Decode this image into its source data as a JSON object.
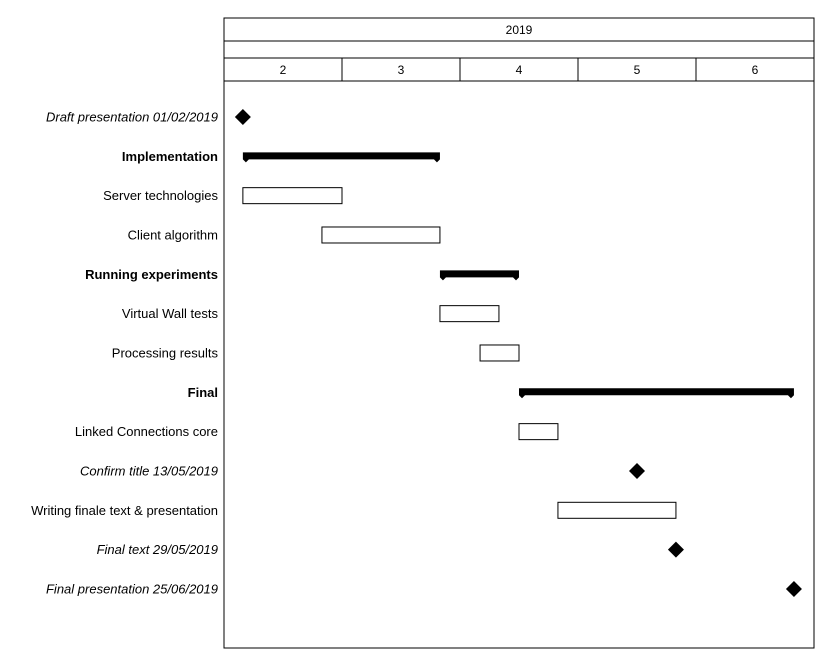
{
  "chart_data": {
    "type": "gantt",
    "year": "2019",
    "months": [
      "2",
      "3",
      "4",
      "5",
      "6"
    ],
    "month_range": [
      1.5,
      6.5
    ],
    "colors": {
      "bar_fill": "#ffffff",
      "bar_stroke": "#000000",
      "group_fill": "#000000",
      "milestone_fill": "#000000"
    },
    "rows": [
      {
        "label": "Draft presentation 01/02/2019",
        "kind": "milestone",
        "at": 1.66
      },
      {
        "label": "Implementation",
        "kind": "group",
        "start": 1.66,
        "end": 3.33
      },
      {
        "label": "Server technologies",
        "kind": "task",
        "start": 1.66,
        "end": 2.5
      },
      {
        "label": "Client algorithm",
        "kind": "task",
        "start": 2.33,
        "end": 3.33
      },
      {
        "label": "Running experiments",
        "kind": "group",
        "start": 3.33,
        "end": 4.0
      },
      {
        "label": "Virtual Wall tests",
        "kind": "task",
        "start": 3.33,
        "end": 3.83
      },
      {
        "label": "Processing results",
        "kind": "task",
        "start": 3.67,
        "end": 4.0
      },
      {
        "label": "Final",
        "kind": "group",
        "start": 4.0,
        "end": 6.33
      },
      {
        "label": "Linked Connections core",
        "kind": "task",
        "start": 4.0,
        "end": 4.33
      },
      {
        "label": "Confirm title 13/05/2019",
        "kind": "milestone",
        "at": 5.0
      },
      {
        "label": "Writing finale text & presentation",
        "kind": "task",
        "start": 4.33,
        "end": 5.33
      },
      {
        "label": "Final text 29/05/2019",
        "kind": "milestone",
        "at": 5.33
      },
      {
        "label": "Final presentation 25/06/2019",
        "kind": "milestone",
        "at": 6.33
      }
    ]
  }
}
